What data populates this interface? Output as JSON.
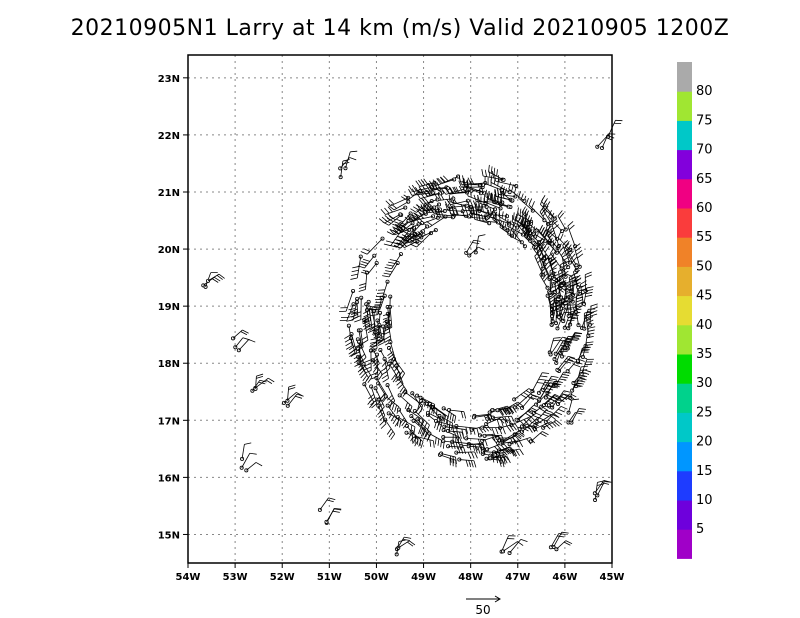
{
  "title": "20210905N1 Larry at 14 km (m/s) Valid 20210905 1200Z",
  "chart_data": {
    "type": "wind-barb-map",
    "xlim": [
      -54,
      -45
    ],
    "ylim": [
      14.5,
      23.4
    ],
    "x_ticks": [
      {
        "value": -54,
        "label": "54W"
      },
      {
        "value": -53,
        "label": "53W"
      },
      {
        "value": -52,
        "label": "52W"
      },
      {
        "value": -51,
        "label": "51W"
      },
      {
        "value": -50,
        "label": "50W"
      },
      {
        "value": -49,
        "label": "49W"
      },
      {
        "value": -48,
        "label": "48W"
      },
      {
        "value": -47,
        "label": "47W"
      },
      {
        "value": -46,
        "label": "46W"
      },
      {
        "value": -45,
        "label": "45W"
      }
    ],
    "y_ticks": [
      {
        "value": 15,
        "label": "15N"
      },
      {
        "value": 16,
        "label": "16N"
      },
      {
        "value": 17,
        "label": "17N"
      },
      {
        "value": 18,
        "label": "18N"
      },
      {
        "value": 19,
        "label": "19N"
      },
      {
        "value": 20,
        "label": "20N"
      },
      {
        "value": 21,
        "label": "21N"
      },
      {
        "value": 22,
        "label": "22N"
      },
      {
        "value": 23,
        "label": "23N"
      }
    ],
    "grid": true,
    "center": {
      "lon": -48.0,
      "lat": 18.8
    },
    "eye_radius_deg": 2.2,
    "reference_vector": {
      "value": 50,
      "label": "50"
    },
    "colorbar": {
      "levels": [
        "5",
        "10",
        "15",
        "20",
        "25",
        "30",
        "35",
        "40",
        "45",
        "50",
        "55",
        "60",
        "65",
        "70",
        "75",
        "80"
      ],
      "colors": [
        "#a000c8",
        "#6e00dc",
        "#1e3cff",
        "#0096ff",
        "#00c8c8",
        "#00d28c",
        "#00dc00",
        "#a0e632",
        "#e6dc32",
        "#e6af2d",
        "#f08228",
        "#fa3c3c",
        "#f00082",
        "#8200dc",
        "#00c8c8",
        "#a0e632",
        "#aaaaaa"
      ]
    }
  }
}
